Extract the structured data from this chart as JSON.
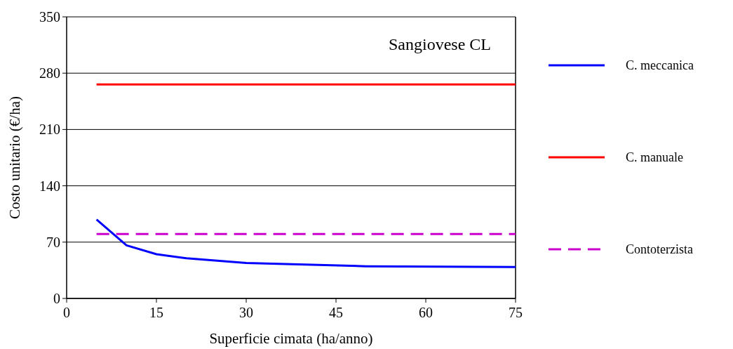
{
  "chart_data": {
    "type": "line",
    "title": "Sangiovese CL",
    "xlabel": "Superficie cimata (ha/anno)",
    "ylabel": "Costo unitario (€/ha)",
    "xlim": [
      0,
      75
    ],
    "xticks": [
      0,
      15,
      30,
      45,
      60,
      75
    ],
    "ylim": [
      0,
      350
    ],
    "yticks": [
      0,
      70,
      140,
      210,
      280,
      350
    ],
    "grid": "y",
    "legend": "right",
    "series": [
      {
        "name": "C. meccanica",
        "color": "#0000ff",
        "x": [
          5,
          10,
          15,
          20,
          30,
          50,
          75
        ],
        "values": [
          98,
          66,
          55,
          50,
          44,
          40,
          39
        ]
      },
      {
        "name": "C. manuale",
        "color": "#ff0000",
        "x": [
          5,
          75
        ],
        "values": [
          266,
          266
        ]
      },
      {
        "name": "Contoterzista",
        "color": "#cc00cc",
        "x": [
          5,
          75
        ],
        "values": [
          80,
          80
        ],
        "line_style": "dashed"
      }
    ]
  }
}
